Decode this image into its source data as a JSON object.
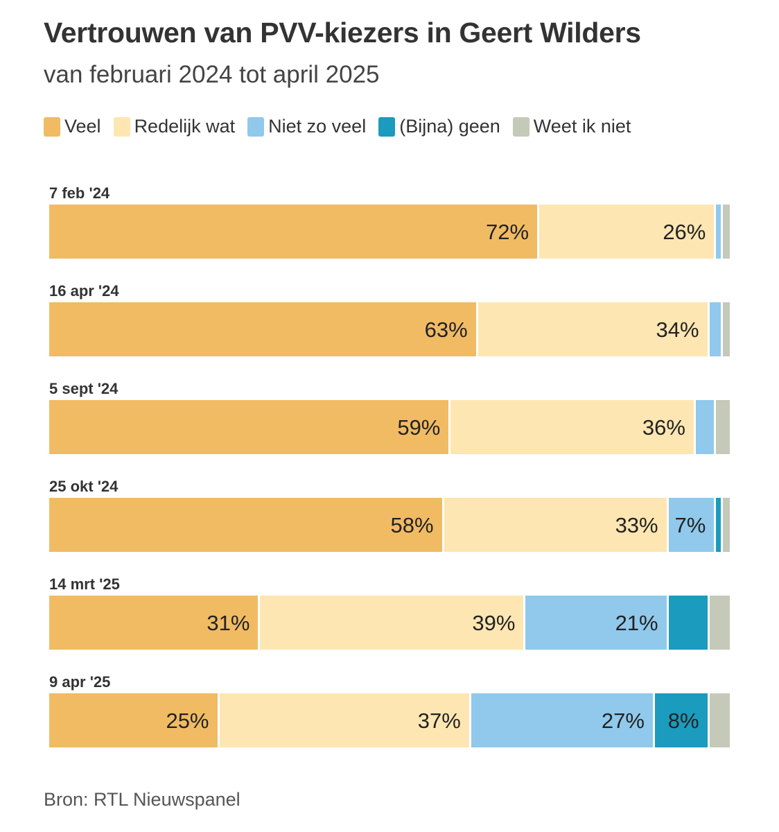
{
  "chart_data": {
    "type": "bar",
    "orientation": "horizontal",
    "stacked": true,
    "title": "Vertrouwen van PVV-kiezers in Geert Wilders",
    "subtitle": "van februari 2024 tot april 2025",
    "legend_position": "top",
    "series": [
      {
        "name": "Veel",
        "color": "#f1bb64",
        "values": [
          72,
          63,
          59,
          58,
          31,
          25
        ]
      },
      {
        "name": "Redelijk wat",
        "color": "#fde6b2",
        "values": [
          26,
          34,
          36,
          33,
          39,
          37
        ]
      },
      {
        "name": "Niet zo veel",
        "color": "#90c9ec",
        "values": [
          1,
          2,
          3,
          7,
          21,
          27
        ]
      },
      {
        "name": "(Bijna) geen",
        "color": "#1b9bbd",
        "values": [
          0,
          0,
          0,
          1,
          6,
          8
        ]
      },
      {
        "name": "Weet ik niet",
        "color": "#c5c9b8",
        "values": [
          1,
          1,
          2,
          1,
          3,
          3
        ]
      }
    ],
    "categories": [
      "7 feb '24",
      "16 apr '24",
      "5 sept '24",
      "25 okt '24",
      "14 mrt '25",
      "9 apr '25"
    ],
    "data_labels": [
      [
        "72%",
        "26%",
        "",
        "",
        ""
      ],
      [
        "63%",
        "34%",
        "",
        "",
        ""
      ],
      [
        "59%",
        "36%",
        "",
        "",
        ""
      ],
      [
        "58%",
        "33%",
        "7%",
        "",
        ""
      ],
      [
        "31%",
        "39%",
        "21%",
        "",
        ""
      ],
      [
        "25%",
        "37%",
        "27%",
        "8%",
        ""
      ]
    ],
    "xlim": [
      0,
      100
    ],
    "source": "Bron: RTL Nieuwspanel"
  }
}
